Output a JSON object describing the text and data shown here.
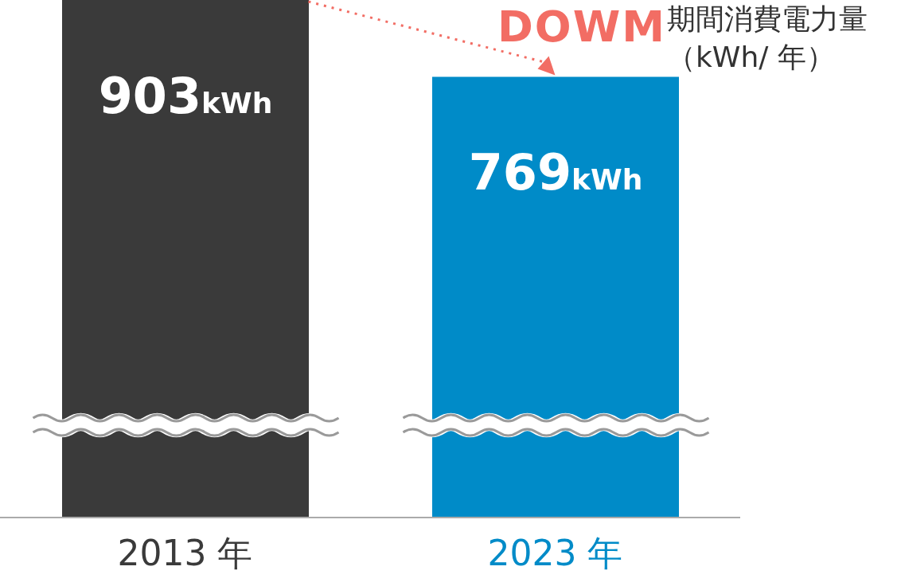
{
  "chart_data": {
    "type": "bar",
    "ylabel": "期間消費電力量（kWh/ 年）",
    "categories": [
      "2013 年",
      "2023 年"
    ],
    "values": [
      903,
      769
    ],
    "colors": [
      "#3a3a3a",
      "#008bc8"
    ],
    "value_labels": [
      "903kWh",
      "769kWh"
    ],
    "annotations": [
      "DOWM"
    ],
    "grid": false,
    "legend": false
  }
}
